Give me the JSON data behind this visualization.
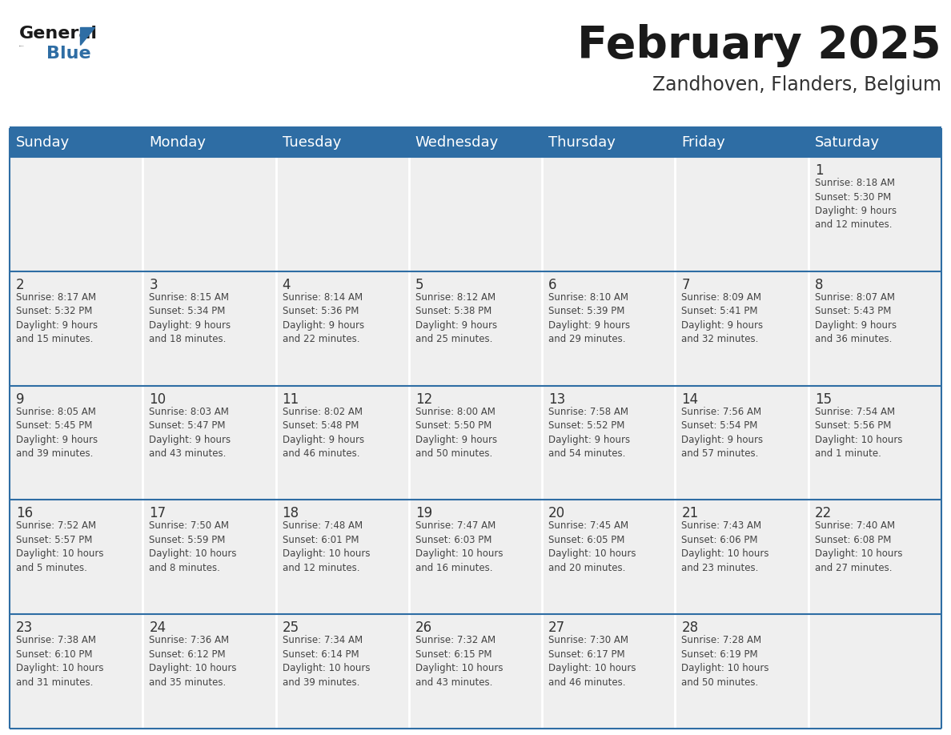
{
  "title": "February 2025",
  "subtitle": "Zandhoven, Flanders, Belgium",
  "header_color": "#2E6DA4",
  "header_text_color": "#FFFFFF",
  "cell_bg_color": "#EFEFEF",
  "separator_color": "#FFFFFF",
  "border_color": "#2E6DA4",
  "day_num_color": "#333333",
  "text_color": "#444444",
  "day_headers": [
    "Sunday",
    "Monday",
    "Tuesday",
    "Wednesday",
    "Thursday",
    "Friday",
    "Saturday"
  ],
  "title_fontsize": 40,
  "subtitle_fontsize": 17,
  "header_fontsize": 13,
  "day_num_fontsize": 12,
  "cell_fontsize": 8.5,
  "logo_general_color": "#1a1a1a",
  "logo_blue_color": "#2E6DA4",
  "logo_triangle_color": "#2E6DA4",
  "calendar": [
    [
      {
        "day": "",
        "info": ""
      },
      {
        "day": "",
        "info": ""
      },
      {
        "day": "",
        "info": ""
      },
      {
        "day": "",
        "info": ""
      },
      {
        "day": "",
        "info": ""
      },
      {
        "day": "",
        "info": ""
      },
      {
        "day": "1",
        "info": "Sunrise: 8:18 AM\nSunset: 5:30 PM\nDaylight: 9 hours\nand 12 minutes."
      }
    ],
    [
      {
        "day": "2",
        "info": "Sunrise: 8:17 AM\nSunset: 5:32 PM\nDaylight: 9 hours\nand 15 minutes."
      },
      {
        "day": "3",
        "info": "Sunrise: 8:15 AM\nSunset: 5:34 PM\nDaylight: 9 hours\nand 18 minutes."
      },
      {
        "day": "4",
        "info": "Sunrise: 8:14 AM\nSunset: 5:36 PM\nDaylight: 9 hours\nand 22 minutes."
      },
      {
        "day": "5",
        "info": "Sunrise: 8:12 AM\nSunset: 5:38 PM\nDaylight: 9 hours\nand 25 minutes."
      },
      {
        "day": "6",
        "info": "Sunrise: 8:10 AM\nSunset: 5:39 PM\nDaylight: 9 hours\nand 29 minutes."
      },
      {
        "day": "7",
        "info": "Sunrise: 8:09 AM\nSunset: 5:41 PM\nDaylight: 9 hours\nand 32 minutes."
      },
      {
        "day": "8",
        "info": "Sunrise: 8:07 AM\nSunset: 5:43 PM\nDaylight: 9 hours\nand 36 minutes."
      }
    ],
    [
      {
        "day": "9",
        "info": "Sunrise: 8:05 AM\nSunset: 5:45 PM\nDaylight: 9 hours\nand 39 minutes."
      },
      {
        "day": "10",
        "info": "Sunrise: 8:03 AM\nSunset: 5:47 PM\nDaylight: 9 hours\nand 43 minutes."
      },
      {
        "day": "11",
        "info": "Sunrise: 8:02 AM\nSunset: 5:48 PM\nDaylight: 9 hours\nand 46 minutes."
      },
      {
        "day": "12",
        "info": "Sunrise: 8:00 AM\nSunset: 5:50 PM\nDaylight: 9 hours\nand 50 minutes."
      },
      {
        "day": "13",
        "info": "Sunrise: 7:58 AM\nSunset: 5:52 PM\nDaylight: 9 hours\nand 54 minutes."
      },
      {
        "day": "14",
        "info": "Sunrise: 7:56 AM\nSunset: 5:54 PM\nDaylight: 9 hours\nand 57 minutes."
      },
      {
        "day": "15",
        "info": "Sunrise: 7:54 AM\nSunset: 5:56 PM\nDaylight: 10 hours\nand 1 minute."
      }
    ],
    [
      {
        "day": "16",
        "info": "Sunrise: 7:52 AM\nSunset: 5:57 PM\nDaylight: 10 hours\nand 5 minutes."
      },
      {
        "day": "17",
        "info": "Sunrise: 7:50 AM\nSunset: 5:59 PM\nDaylight: 10 hours\nand 8 minutes."
      },
      {
        "day": "18",
        "info": "Sunrise: 7:48 AM\nSunset: 6:01 PM\nDaylight: 10 hours\nand 12 minutes."
      },
      {
        "day": "19",
        "info": "Sunrise: 7:47 AM\nSunset: 6:03 PM\nDaylight: 10 hours\nand 16 minutes."
      },
      {
        "day": "20",
        "info": "Sunrise: 7:45 AM\nSunset: 6:05 PM\nDaylight: 10 hours\nand 20 minutes."
      },
      {
        "day": "21",
        "info": "Sunrise: 7:43 AM\nSunset: 6:06 PM\nDaylight: 10 hours\nand 23 minutes."
      },
      {
        "day": "22",
        "info": "Sunrise: 7:40 AM\nSunset: 6:08 PM\nDaylight: 10 hours\nand 27 minutes."
      }
    ],
    [
      {
        "day": "23",
        "info": "Sunrise: 7:38 AM\nSunset: 6:10 PM\nDaylight: 10 hours\nand 31 minutes."
      },
      {
        "day": "24",
        "info": "Sunrise: 7:36 AM\nSunset: 6:12 PM\nDaylight: 10 hours\nand 35 minutes."
      },
      {
        "day": "25",
        "info": "Sunrise: 7:34 AM\nSunset: 6:14 PM\nDaylight: 10 hours\nand 39 minutes."
      },
      {
        "day": "26",
        "info": "Sunrise: 7:32 AM\nSunset: 6:15 PM\nDaylight: 10 hours\nand 43 minutes."
      },
      {
        "day": "27",
        "info": "Sunrise: 7:30 AM\nSunset: 6:17 PM\nDaylight: 10 hours\nand 46 minutes."
      },
      {
        "day": "28",
        "info": "Sunrise: 7:28 AM\nSunset: 6:19 PM\nDaylight: 10 hours\nand 50 minutes."
      },
      {
        "day": "",
        "info": ""
      }
    ]
  ]
}
